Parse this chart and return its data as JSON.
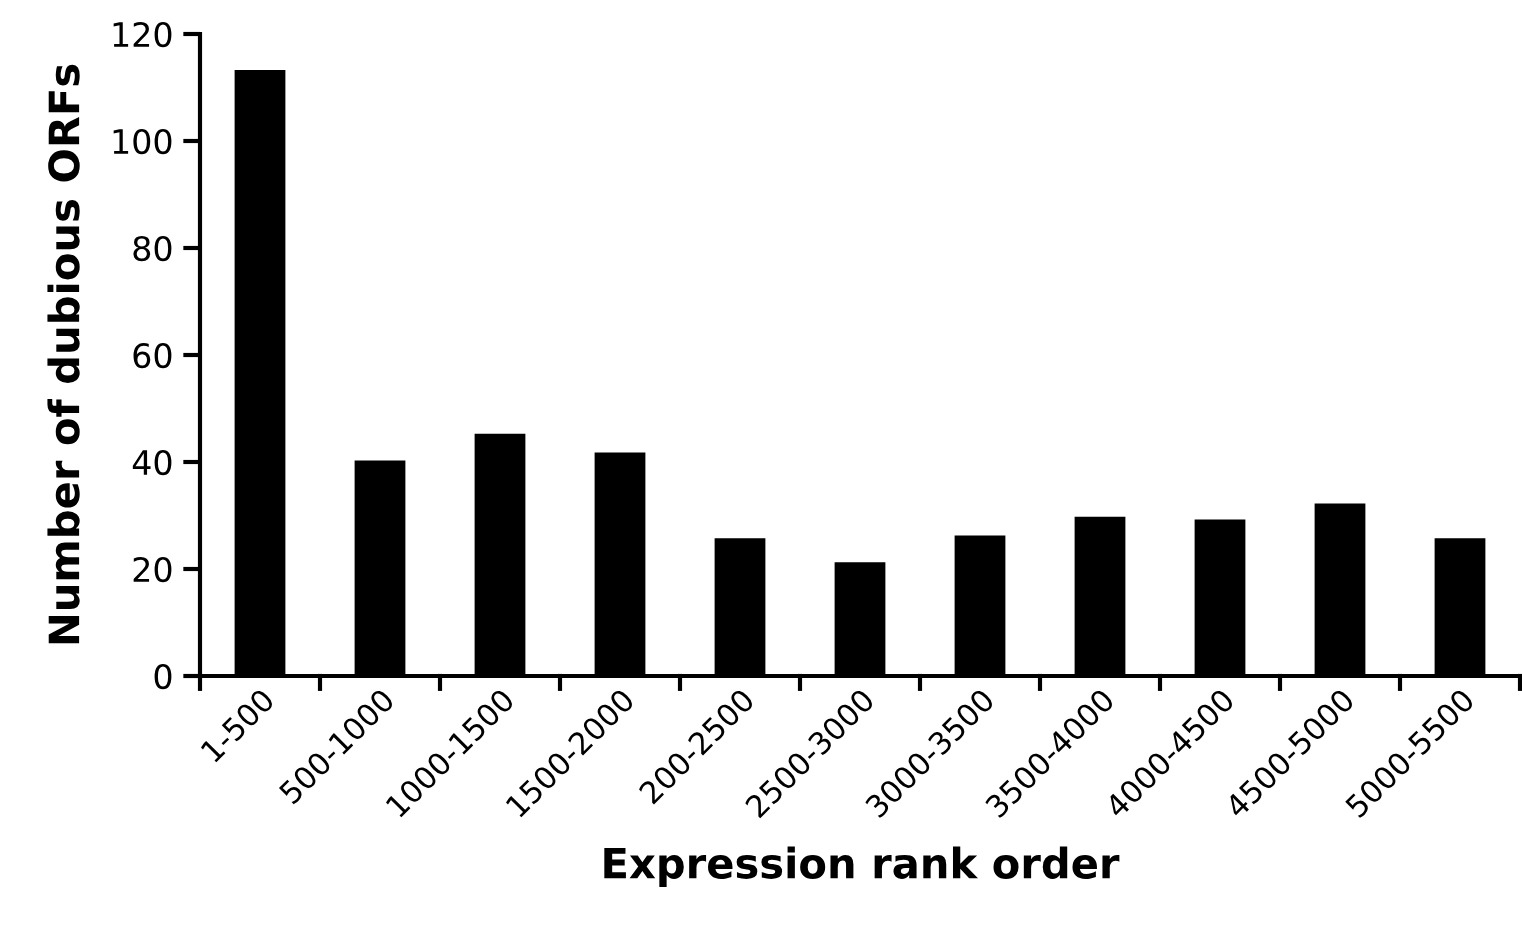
{
  "chart_data": {
    "type": "bar",
    "xlabel": "Expression rank order",
    "ylabel": "Number of dubious ORFs",
    "categories": [
      "1-500",
      "500-1000",
      "1000-1500",
      "1500-2000",
      "200-2500",
      "2500-3000",
      "3000-3500",
      "3500-4000",
      "4000-4500",
      "4500-5000",
      "5000-5500"
    ],
    "values": [
      113,
      40,
      45,
      41.5,
      25.5,
      21,
      26,
      29.5,
      29,
      32,
      25.5
    ],
    "color": "#000000",
    "ylim": [
      0,
      120
    ],
    "yticks": [
      0,
      20,
      40,
      60,
      80,
      100,
      120
    ],
    "grid": false,
    "legend": false
  }
}
